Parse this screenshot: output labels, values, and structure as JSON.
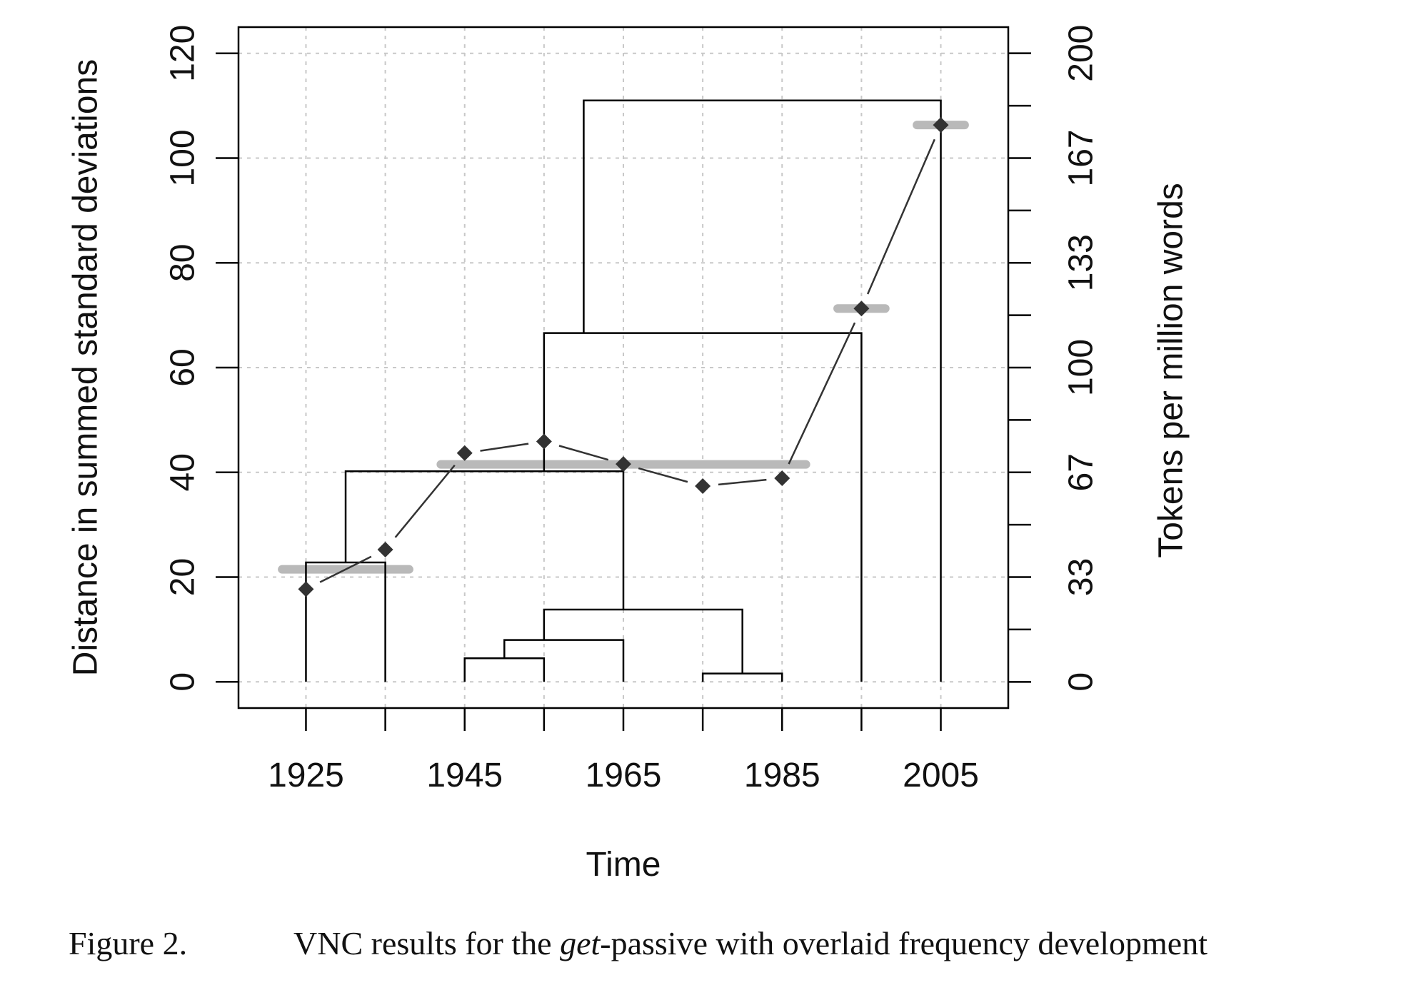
{
  "chart_data": {
    "type": "line",
    "xlabel": "Time",
    "ylabel": "Distance in summed standard deviations",
    "y2label": "Tokens per million words",
    "xlim": [
      1916.5,
      2013.5
    ],
    "ylim": [
      -5,
      125
    ],
    "y2lim": [
      -8.33,
      208.33
    ],
    "grid": true,
    "x_ticks": [
      1925,
      1935,
      1945,
      1955,
      1965,
      1975,
      1985,
      1995,
      2005
    ],
    "x_tick_labels": [
      "1925",
      "1945",
      "1965",
      "1985",
      "2005"
    ],
    "x_labeled_ticks": [
      1925,
      1945,
      1965,
      1985,
      2005
    ],
    "y_ticks": [
      0,
      20,
      40,
      60,
      80,
      100,
      120
    ],
    "y_tick_labels": [
      "0",
      "20",
      "40",
      "60",
      "80",
      "100",
      "120"
    ],
    "y2_ticks": [
      0,
      16.67,
      33.33,
      50,
      66.67,
      83.33,
      100,
      116.67,
      133.33,
      150,
      166.67,
      183.33,
      200
    ],
    "y2_tick_labels": [
      "0",
      "33",
      "67",
      "100",
      "133",
      "167",
      "200"
    ],
    "y2_labeled_ticks": [
      0,
      33.33,
      66.67,
      100,
      133.33,
      166.67,
      200
    ],
    "frequency_series": {
      "x": [
        1925,
        1935,
        1945,
        1955,
        1965,
        1975,
        1985,
        1995,
        2005
      ],
      "y_tokens": [
        29.5,
        42.1,
        72.8,
        76.5,
        69.3,
        62.3,
        64.8,
        118.8,
        177.2
      ]
    },
    "cluster_means": [
      {
        "x_start": 1922,
        "x_end": 1938,
        "y_tokens": 35.8
      },
      {
        "x_start": 1942,
        "x_end": 1988,
        "y_tokens": 69.2
      },
      {
        "x_start": 1992,
        "x_end": 1998,
        "y_tokens": 118.8
      },
      {
        "x_start": 2002,
        "x_end": 2008,
        "y_tokens": 177.2
      }
    ],
    "dendrogram_links": [
      {
        "left_x": 1945,
        "left_h": 0,
        "right_x": 1955,
        "right_h": 0,
        "height": 4.5
      },
      {
        "left_x": 1950,
        "left_h": 4.5,
        "right_x": 1965,
        "right_h": 0,
        "height": 8.0
      },
      {
        "left_x": 1975,
        "left_h": 0,
        "right_x": 1985,
        "right_h": 0,
        "height": 1.6
      },
      {
        "left_x": 1955,
        "left_h": 8.0,
        "right_x": 1980,
        "right_h": 1.6,
        "height": 13.8
      },
      {
        "left_x": 1925,
        "left_h": 0,
        "right_x": 1935,
        "right_h": 0,
        "height": 22.8
      },
      {
        "left_x": 1930,
        "left_h": 22.8,
        "right_x": 1965,
        "right_h": 13.8,
        "height": 40.2
      },
      {
        "left_x": 1955,
        "left_h": 40.2,
        "right_x": 1995,
        "right_h": 0,
        "height": 66.6
      },
      {
        "left_x": 1960,
        "left_h": 66.6,
        "right_x": 2005,
        "right_h": 0,
        "height": 111.0
      }
    ],
    "colors": {
      "axis": "#000000",
      "grid": "#c8c8c8",
      "marker": "#333333",
      "mean_bar": "#b9b9b9"
    }
  },
  "caption": {
    "number": "Figure 2.",
    "before": "VNC results for the ",
    "emphasis": "get",
    "after": "-passive with overlaid frequency development"
  }
}
